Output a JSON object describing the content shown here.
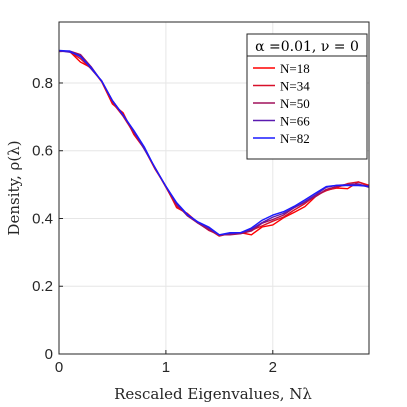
{
  "chart_data": {
    "type": "line",
    "xlabel": "Rescaled Eigenvalues,  Nλ",
    "ylabel": "Density, ρ(λ)",
    "xlim": [
      0,
      2.9
    ],
    "ylim": [
      0,
      0.98
    ],
    "xticks": [
      0,
      1,
      2
    ],
    "xtick_labels": [
      "0",
      "1",
      "2"
    ],
    "yticks": [
      0,
      0.2,
      0.4,
      0.6,
      0.8
    ],
    "ytick_labels": [
      "0",
      "0.2",
      "0.4",
      "0.6",
      "0.8"
    ],
    "grid": true,
    "legend": {
      "title": "α =0.01, ν = 0",
      "placement": "top-right"
    },
    "x": [
      0,
      0.1,
      0.2,
      0.3,
      0.4,
      0.5,
      0.6,
      0.7,
      0.8,
      0.9,
      1.0,
      1.1,
      1.2,
      1.3,
      1.4,
      1.5,
      1.6,
      1.7,
      1.8,
      1.9,
      2.0,
      2.1,
      2.2,
      2.3,
      2.4,
      2.5,
      2.6,
      2.7,
      2.8,
      2.9
    ],
    "series": [
      {
        "name": "N=18",
        "color": "#ff0000",
        "values": [
          0.895,
          0.893,
          0.862,
          0.845,
          0.803,
          0.738,
          0.712,
          0.648,
          0.605,
          0.545,
          0.495,
          0.432,
          0.415,
          0.388,
          0.365,
          0.352,
          0.354,
          0.358,
          0.352,
          0.375,
          0.381,
          0.402,
          0.418,
          0.435,
          0.465,
          0.484,
          0.49,
          0.488,
          0.508,
          0.498
        ]
      },
      {
        "name": "N=34",
        "color": "#d8102a",
        "values": [
          0.895,
          0.892,
          0.872,
          0.842,
          0.805,
          0.742,
          0.702,
          0.652,
          0.605,
          0.548,
          0.492,
          0.436,
          0.412,
          0.386,
          0.368,
          0.348,
          0.356,
          0.356,
          0.365,
          0.378,
          0.392,
          0.404,
          0.425,
          0.444,
          0.468,
          0.482,
          0.492,
          0.503,
          0.508,
          0.496
        ]
      },
      {
        "name": "N=50",
        "color": "#a0105c",
        "values": [
          0.893,
          0.894,
          0.884,
          0.848,
          0.804,
          0.748,
          0.705,
          0.655,
          0.606,
          0.548,
          0.495,
          0.442,
          0.408,
          0.386,
          0.366,
          0.352,
          0.352,
          0.355,
          0.363,
          0.386,
          0.397,
          0.41,
          0.432,
          0.448,
          0.465,
          0.486,
          0.494,
          0.499,
          0.5,
          0.495
        ]
      },
      {
        "name": "N=66",
        "color": "#5a1ab0",
        "values": [
          0.895,
          0.891,
          0.881,
          0.842,
          0.806,
          0.748,
          0.706,
          0.658,
          0.603,
          0.55,
          0.494,
          0.444,
          0.41,
          0.388,
          0.372,
          0.351,
          0.355,
          0.358,
          0.368,
          0.388,
          0.404,
          0.415,
          0.432,
          0.45,
          0.47,
          0.492,
          0.498,
          0.5,
          0.502,
          0.492
        ]
      },
      {
        "name": "N=82",
        "color": "#1a1aff",
        "values": [
          0.896,
          0.894,
          0.878,
          0.846,
          0.805,
          0.748,
          0.705,
          0.66,
          0.61,
          0.548,
          0.495,
          0.447,
          0.412,
          0.39,
          0.375,
          0.352,
          0.358,
          0.358,
          0.372,
          0.395,
          0.41,
          0.42,
          0.436,
          0.455,
          0.475,
          0.494,
          0.498,
          0.497,
          0.497,
          0.495
        ]
      }
    ]
  }
}
